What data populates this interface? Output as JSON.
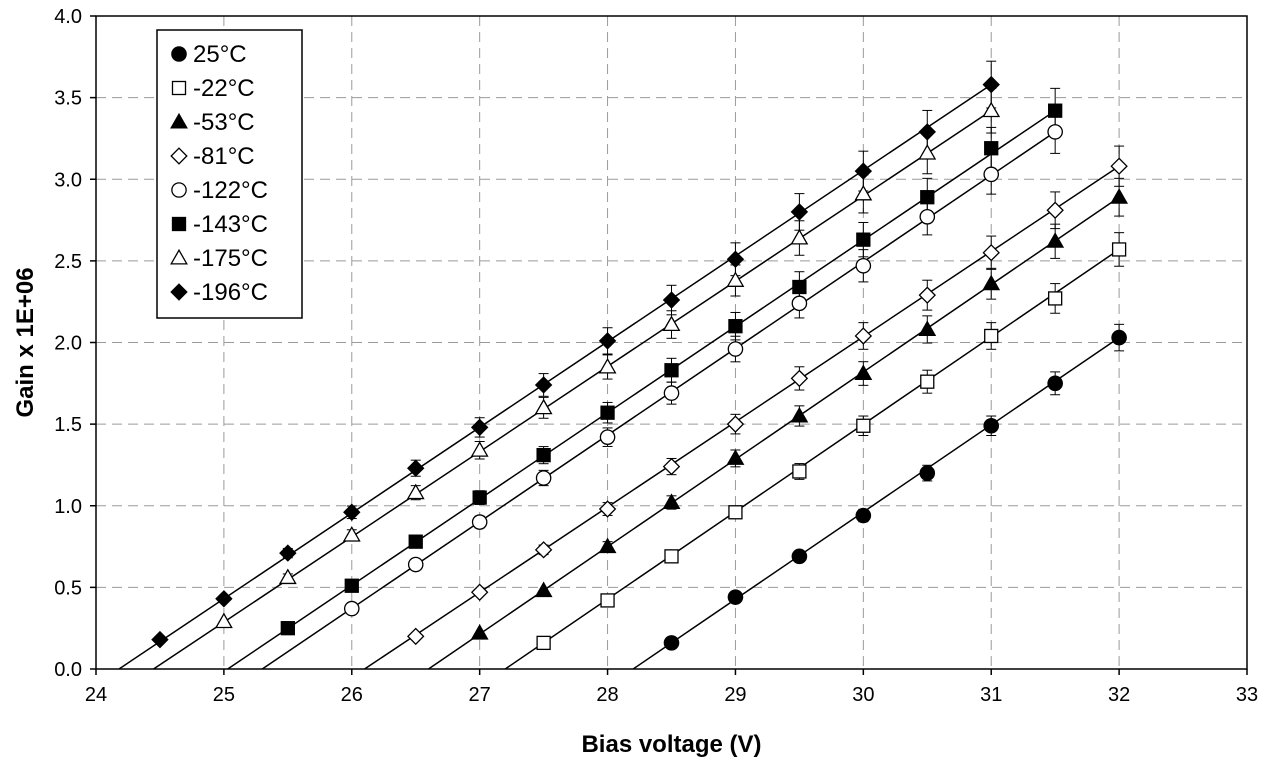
{
  "chart_data": {
    "type": "scatter",
    "title": "",
    "xlabel": "Bias voltage (V)",
    "ylabel": "Gain x 1E+06",
    "xlim": [
      24,
      33
    ],
    "ylim": [
      0,
      4
    ],
    "x_ticks": [
      "24",
      "25",
      "26",
      "27",
      "28",
      "29",
      "30",
      "31",
      "32",
      "33"
    ],
    "y_ticks": [
      "0.0",
      "0.5",
      "1.0",
      "1.5",
      "2.0",
      "2.5",
      "3.0",
      "3.5",
      "4.0"
    ],
    "grid": true,
    "legend_position": "top-left",
    "series": [
      {
        "name": "25°C",
        "marker": "circle",
        "filled": true,
        "points": [
          [
            28.5,
            0.16
          ],
          [
            29,
            0.44
          ],
          [
            29.5,
            0.69
          ],
          [
            30,
            0.94
          ],
          [
            30.5,
            1.2
          ],
          [
            31,
            1.49
          ],
          [
            31.5,
            1.75
          ],
          [
            32,
            2.03
          ]
        ],
        "fit": [
          [
            28.2,
            0
          ],
          [
            32,
            2.03
          ]
        ]
      },
      {
        "name": "-22°C",
        "marker": "square",
        "filled": false,
        "points": [
          [
            27.5,
            0.16
          ],
          [
            28,
            0.42
          ],
          [
            28.5,
            0.69
          ],
          [
            29,
            0.96
          ],
          [
            29.5,
            1.21
          ],
          [
            30,
            1.49
          ],
          [
            30.5,
            1.76
          ],
          [
            31,
            2.04
          ],
          [
            31.5,
            2.27
          ],
          [
            32,
            2.57
          ]
        ],
        "fit": [
          [
            27.2,
            0
          ],
          [
            32,
            2.57
          ]
        ]
      },
      {
        "name": "-53°C",
        "marker": "triangle",
        "filled": true,
        "points": [
          [
            27,
            0.22
          ],
          [
            27.5,
            0.48
          ],
          [
            28,
            0.75
          ],
          [
            28.5,
            1.02
          ],
          [
            29,
            1.29
          ],
          [
            29.5,
            1.55
          ],
          [
            30,
            1.81
          ],
          [
            30.5,
            2.08
          ],
          [
            31,
            2.36
          ],
          [
            31.5,
            2.62
          ],
          [
            32,
            2.89
          ]
        ],
        "fit": [
          [
            26.6,
            0
          ],
          [
            32,
            2.89
          ]
        ]
      },
      {
        "name": "-81°C",
        "marker": "diamond",
        "filled": false,
        "points": [
          [
            26.5,
            0.2
          ],
          [
            27,
            0.47
          ],
          [
            27.5,
            0.73
          ],
          [
            28,
            0.98
          ],
          [
            28.5,
            1.24
          ],
          [
            29,
            1.5
          ],
          [
            29.5,
            1.78
          ],
          [
            30,
            2.04
          ],
          [
            30.5,
            2.29
          ],
          [
            31,
            2.55
          ],
          [
            31.5,
            2.81
          ],
          [
            32,
            3.08
          ]
        ],
        "fit": [
          [
            26.1,
            0
          ],
          [
            32,
            3.08
          ]
        ]
      },
      {
        "name": "-122°C",
        "marker": "circle",
        "filled": false,
        "points": [
          [
            26,
            0.37
          ],
          [
            26.5,
            0.64
          ],
          [
            27,
            0.9
          ],
          [
            27.5,
            1.17
          ],
          [
            28,
            1.42
          ],
          [
            28.5,
            1.69
          ],
          [
            29,
            1.96
          ],
          [
            29.5,
            2.24
          ],
          [
            30,
            2.47
          ],
          [
            30.5,
            2.77
          ],
          [
            31,
            3.03
          ],
          [
            31.5,
            3.29
          ]
        ],
        "fit": [
          [
            25.3,
            0
          ],
          [
            31.5,
            3.29
          ]
        ]
      },
      {
        "name": "-143°C",
        "marker": "square",
        "filled": true,
        "points": [
          [
            25.5,
            0.25
          ],
          [
            26,
            0.51
          ],
          [
            26.5,
            0.78
          ],
          [
            27,
            1.05
          ],
          [
            27.5,
            1.31
          ],
          [
            28,
            1.57
          ],
          [
            28.5,
            1.83
          ],
          [
            29,
            2.1
          ],
          [
            29.5,
            2.34
          ],
          [
            30,
            2.63
          ],
          [
            30.5,
            2.89
          ],
          [
            31,
            3.19
          ],
          [
            31.5,
            3.42
          ]
        ],
        "fit": [
          [
            25.03,
            0
          ],
          [
            31.5,
            3.42
          ]
        ]
      },
      {
        "name": "-175°C",
        "marker": "triangle",
        "filled": false,
        "points": [
          [
            25,
            0.29
          ],
          [
            25.5,
            0.56
          ],
          [
            26,
            0.82
          ],
          [
            26.5,
            1.08
          ],
          [
            27,
            1.34
          ],
          [
            27.5,
            1.6
          ],
          [
            28,
            1.85
          ],
          [
            28.5,
            2.11
          ],
          [
            29,
            2.38
          ],
          [
            29.5,
            2.64
          ],
          [
            30,
            2.91
          ],
          [
            30.5,
            3.16
          ],
          [
            31,
            3.42
          ]
        ],
        "fit": [
          [
            24.45,
            0
          ],
          [
            31,
            3.42
          ]
        ]
      },
      {
        "name": "-196°C",
        "marker": "diamond",
        "filled": true,
        "points": [
          [
            24.5,
            0.18
          ],
          [
            25,
            0.43
          ],
          [
            25.5,
            0.71
          ],
          [
            26,
            0.96
          ],
          [
            26.5,
            1.23
          ],
          [
            27,
            1.48
          ],
          [
            27.5,
            1.74
          ],
          [
            28,
            2.01
          ],
          [
            28.5,
            2.26
          ],
          [
            29,
            2.51
          ],
          [
            29.5,
            2.8
          ],
          [
            30,
            3.05
          ],
          [
            30.5,
            3.29
          ],
          [
            31,
            3.58
          ]
        ],
        "fit": [
          [
            24.18,
            0
          ],
          [
            31,
            3.58
          ]
        ]
      }
    ]
  }
}
